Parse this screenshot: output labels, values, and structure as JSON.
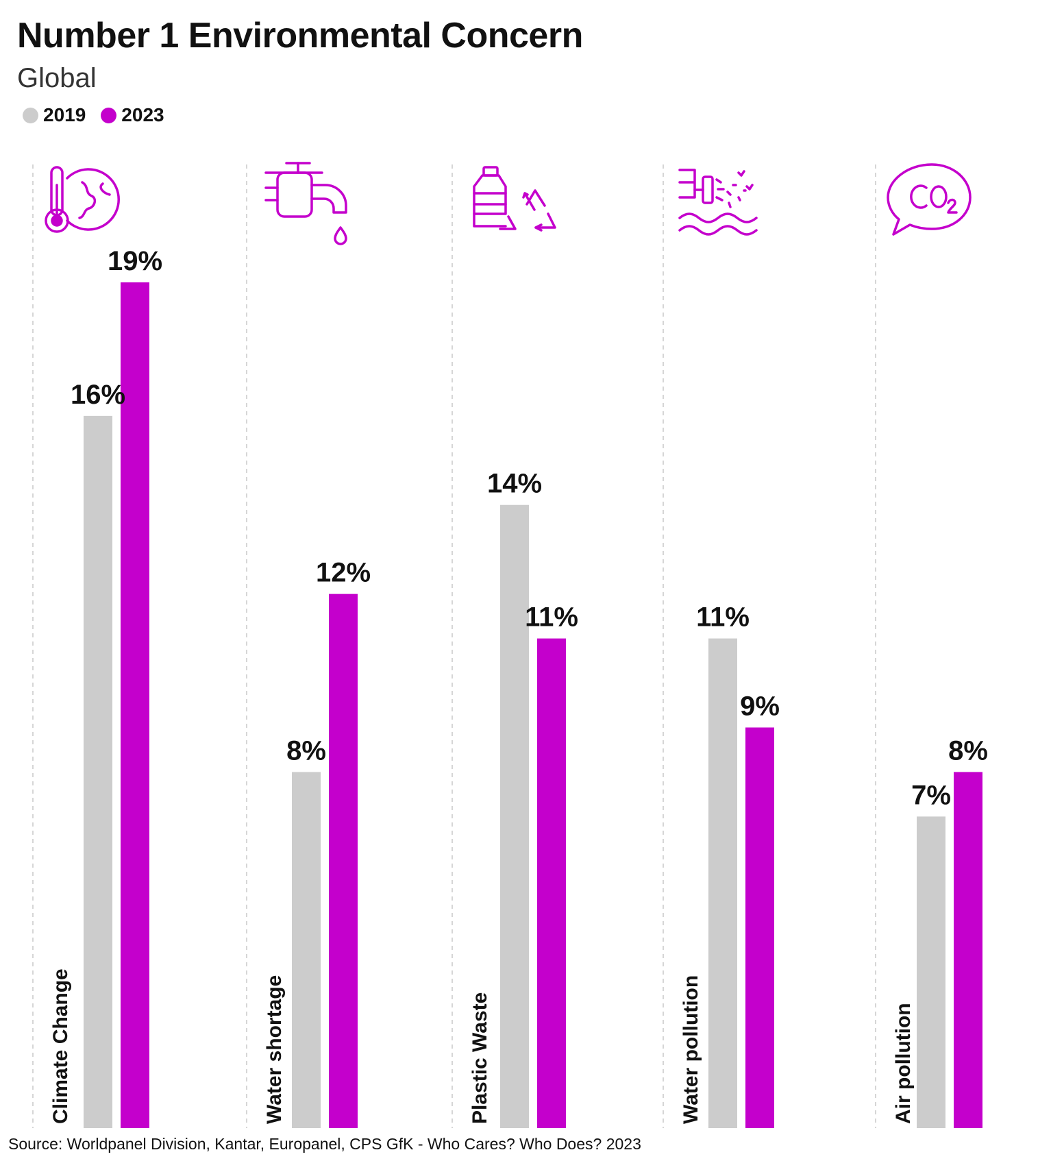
{
  "header": {
    "title": "Number 1 Environmental Concern",
    "subtitle": "Global"
  },
  "legend": [
    {
      "label": "2019",
      "color": "#cccccc"
    },
    {
      "label": "2023",
      "color": "#c400cc"
    }
  ],
  "colors": {
    "series_2019": "#cccccc",
    "series_2023": "#c400cc",
    "icon": "#c400cc",
    "divider": "#c8c8c8"
  },
  "chart_data": {
    "type": "bar",
    "title": "Number 1 Environmental Concern",
    "subtitle": "Global",
    "categories": [
      "Climate Change",
      "Water shortage",
      "Plastic Waste",
      "Water pollution",
      "Air pollution"
    ],
    "icons": [
      "thermometer-globe-icon",
      "water-tap-icon",
      "plastic-bottle-recycle-icon",
      "water-pollution-icon",
      "co2-speech-bubble-icon"
    ],
    "series": [
      {
        "name": "2019",
        "color": "#cccccc",
        "values": [
          16,
          8,
          14,
          11,
          7
        ],
        "labels": [
          "16%",
          "8%",
          "14%",
          "11%",
          "7%"
        ]
      },
      {
        "name": "2023",
        "color": "#c400cc",
        "values": [
          19,
          12,
          11,
          9,
          8
        ],
        "labels": [
          "19%",
          "12%",
          "11%",
          "9%",
          "8%"
        ]
      }
    ],
    "ylim": [
      0,
      19
    ],
    "value_unit": "%",
    "grid": false,
    "legend_position": "top-left"
  },
  "footer": {
    "source": "Source: Worldpanel Division, Kantar, Europanel, CPS GfK - Who Cares? Who Does? 2023"
  }
}
